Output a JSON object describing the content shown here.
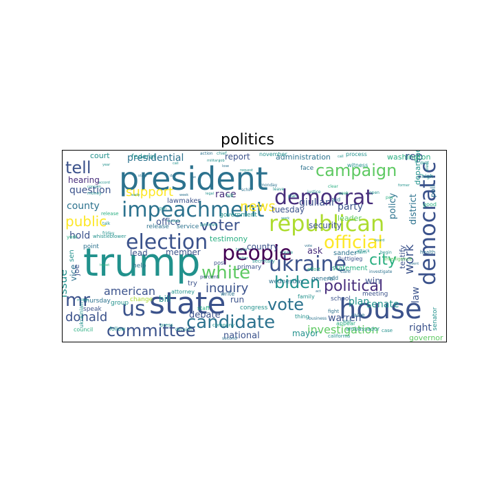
{
  "title": "politics",
  "palette": [
    "#440154",
    "#472d7b",
    "#3b528b",
    "#2c728e",
    "#21918c",
    "#28ae80",
    "#5ec962",
    "#addc30",
    "#fde725"
  ],
  "words": [
    {
      "text": "president",
      "c": 3
    },
    {
      "text": "trump",
      "c": 4
    },
    {
      "text": "state",
      "c": 2
    },
    {
      "text": "house",
      "c": 2
    },
    {
      "text": "impeachment",
      "c": 3
    },
    {
      "text": "republican",
      "c": 7
    },
    {
      "text": "democratic",
      "c": 2
    },
    {
      "text": "campaign",
      "c": 6
    },
    {
      "text": "democrat",
      "c": 1
    },
    {
      "text": "ukraine",
      "c": 2
    },
    {
      "text": "election",
      "c": 2
    },
    {
      "text": "people",
      "c": 0
    },
    {
      "text": "candidate",
      "c": 3
    },
    {
      "text": "white",
      "c": 6
    },
    {
      "text": "committee",
      "c": 2
    },
    {
      "text": "official",
      "c": 8
    },
    {
      "text": "voter",
      "c": 2
    },
    {
      "text": "vote",
      "c": 3
    },
    {
      "text": "biden",
      "c": 4
    },
    {
      "text": "us",
      "c": 2
    },
    {
      "text": "mr",
      "c": 2
    },
    {
      "text": "tell",
      "c": 2
    },
    {
      "text": "political",
      "c": 1
    },
    {
      "text": "support",
      "c": 8
    },
    {
      "text": "inquiry",
      "c": 2
    },
    {
      "text": "city",
      "c": 5
    },
    {
      "text": "public",
      "c": 8
    },
    {
      "text": "investigation",
      "c": 6
    },
    {
      "text": "news",
      "c": 8
    },
    {
      "text": "american",
      "c": 2
    },
    {
      "text": "donald",
      "c": 2
    },
    {
      "text": "work",
      "c": 2
    },
    {
      "text": "presidential",
      "c": 3
    },
    {
      "text": "administration",
      "c": 3
    },
    {
      "text": "law",
      "c": 2
    },
    {
      "text": "plan",
      "c": 4
    },
    {
      "text": "senate",
      "c": 4
    },
    {
      "text": "party",
      "c": 2
    },
    {
      "text": "vice",
      "c": 3
    },
    {
      "text": "warren",
      "c": 2
    },
    {
      "text": "giuliani",
      "c": 2
    },
    {
      "text": "issue",
      "c": 4
    },
    {
      "text": "question",
      "c": 2
    },
    {
      "text": "county",
      "c": 3
    },
    {
      "text": "hold",
      "c": 2
    },
    {
      "text": "race",
      "c": 1
    },
    {
      "text": "office",
      "c": 2
    },
    {
      "text": "district",
      "c": 3
    },
    {
      "text": "policy",
      "c": 3
    },
    {
      "text": "win",
      "c": 2
    },
    {
      "text": "ask",
      "c": 1
    },
    {
      "text": "lead",
      "c": 2
    },
    {
      "text": "member",
      "c": 2
    },
    {
      "text": "hearing",
      "c": 1
    },
    {
      "text": "rep",
      "c": 2
    },
    {
      "text": "tuesday",
      "c": 2
    },
    {
      "text": "country",
      "c": 2
    },
    {
      "text": "run",
      "c": 2
    },
    {
      "text": "debate",
      "c": 2
    },
    {
      "text": "national",
      "c": 2
    },
    {
      "text": "report",
      "c": 2
    },
    {
      "text": "right",
      "c": 2
    },
    {
      "text": "mayor",
      "c": 4
    },
    {
      "text": "security",
      "c": 2
    },
    {
      "text": "testify",
      "c": 2
    },
    {
      "text": "bill",
      "c": 4
    },
    {
      "text": "testimony",
      "c": 5
    },
    {
      "text": "leader",
      "c": 6
    },
    {
      "text": "department",
      "c": 4
    },
    {
      "text": "washington",
      "c": 5
    },
    {
      "text": "court",
      "c": 4
    },
    {
      "text": "federal",
      "c": 4
    },
    {
      "text": "sen",
      "c": 4
    },
    {
      "text": "joe",
      "c": 2
    },
    {
      "text": "senator",
      "c": 4
    },
    {
      "text": "poll",
      "c": 3
    },
    {
      "text": "governor",
      "c": 6
    },
    {
      "text": "lawmaker",
      "c": 2
    },
    {
      "text": "government",
      "c": 4
    },
    {
      "text": "release",
      "c": 3
    },
    {
      "text": "service",
      "c": 3
    },
    {
      "text": "primary",
      "c": 2
    },
    {
      "text": "sander",
      "c": 3
    },
    {
      "text": "statement",
      "c": 5
    },
    {
      "text": "congress",
      "c": 4
    },
    {
      "text": "school",
      "c": 2
    },
    {
      "text": "meeting",
      "c": 2
    },
    {
      "text": "general",
      "c": 3
    },
    {
      "text": "wednesday",
      "c": 3
    },
    {
      "text": "point",
      "c": 3
    },
    {
      "text": "thursday",
      "c": 3
    },
    {
      "text": "help",
      "c": 3
    },
    {
      "text": "try",
      "c": 2
    },
    {
      "text": "post",
      "c": 2
    },
    {
      "text": "write",
      "c": 3
    },
    {
      "text": "attorney",
      "c": 4
    },
    {
      "text": "change",
      "c": 7
    },
    {
      "text": "group",
      "c": 4
    },
    {
      "text": "face",
      "c": 3
    },
    {
      "text": "speak",
      "c": 2
    },
    {
      "text": "ukrainian",
      "c": 4
    },
    {
      "text": "council",
      "c": 5
    },
    {
      "text": "follow",
      "c": 4
    },
    {
      "text": "ambassador",
      "c": 4
    },
    {
      "text": "raise",
      "c": 3
    },
    {
      "text": "appear",
      "c": 5
    },
    {
      "text": "thing",
      "c": 4
    },
    {
      "text": "aid",
      "c": 3
    },
    {
      "text": "november",
      "c": 4
    },
    {
      "text": "process",
      "c": 4
    },
    {
      "text": "high",
      "c": 4
    },
    {
      "text": "good",
      "c": 5
    },
    {
      "text": "believe",
      "c": 4
    },
    {
      "text": "york",
      "c": 5
    },
    {
      "text": "talk",
      "c": 4
    },
    {
      "text": "percent",
      "c": 2
    },
    {
      "text": "add",
      "c": 3
    },
    {
      "text": "secretary",
      "c": 4
    },
    {
      "text": "effort",
      "c": 5
    },
    {
      "text": "Buttigieg",
      "c": 2
    },
    {
      "text": "california",
      "c": 4
    },
    {
      "text": "end",
      "c": 4
    },
    {
      "text": "fight",
      "c": 3
    },
    {
      "text": "family",
      "c": 4
    },
    {
      "text": "case",
      "c": 4
    },
    {
      "text": "elect",
      "c": 4
    },
    {
      "text": "witness",
      "c": 4
    },
    {
      "text": "clear",
      "c": 5
    },
    {
      "text": "pay",
      "c": 5
    },
    {
      "text": "hill",
      "c": 5
    },
    {
      "text": "leave",
      "c": 4
    },
    {
      "text": "release",
      "c": 5
    },
    {
      "text": "health",
      "c": 3
    },
    {
      "text": "business",
      "c": 3
    },
    {
      "text": "intelligence",
      "c": 6
    },
    {
      "text": "investigate",
      "c": 3
    },
    {
      "text": "company",
      "c": 4
    },
    {
      "text": "staff",
      "c": 5
    },
    {
      "text": "press",
      "c": 4
    },
    {
      "text": "care",
      "c": 3
    },
    {
      "text": "decision",
      "c": 4
    },
    {
      "text": "second",
      "c": 3
    },
    {
      "text": "whistleblower",
      "c": 4
    },
    {
      "text": "early",
      "c": 4
    },
    {
      "text": "justice",
      "c": 4
    },
    {
      "text": "money",
      "c": 4
    },
    {
      "text": "monday",
      "c": 3
    },
    {
      "text": "friday",
      "c": 4
    },
    {
      "text": "attack",
      "c": 4
    },
    {
      "text": "action",
      "c": 3
    },
    {
      "text": "chief",
      "c": 4
    },
    {
      "text": "deal",
      "c": 4
    },
    {
      "text": "claim",
      "c": 4
    },
    {
      "text": "begin",
      "c": 4
    },
    {
      "text": "open",
      "c": 4
    },
    {
      "text": "seek",
      "c": 5
    },
    {
      "text": "job",
      "c": 4
    },
    {
      "text": "gun",
      "c": 4
    },
    {
      "text": "create",
      "c": 4
    },
    {
      "text": "plan",
      "c": 4
    },
    {
      "text": "taylor",
      "c": 4
    },
    {
      "text": "tweet",
      "c": 5
    },
    {
      "text": "schiff",
      "c": 3
    },
    {
      "text": "military",
      "c": 4
    },
    {
      "text": "lose",
      "c": 3
    },
    {
      "text": "letter",
      "c": 4
    },
    {
      "text": "request",
      "c": 4
    },
    {
      "text": "call",
      "c": 4
    },
    {
      "text": "act",
      "c": 3
    },
    {
      "text": "accord",
      "c": 4
    },
    {
      "text": "concern",
      "c": 4
    },
    {
      "text": "week",
      "c": 3
    },
    {
      "text": "day",
      "c": 3
    },
    {
      "text": "call",
      "c": 4
    },
    {
      "text": "work",
      "c": 4
    },
    {
      "text": "tax",
      "c": 3
    },
    {
      "text": "state",
      "c": 3
    },
    {
      "text": "legal",
      "c": 4
    },
    {
      "text": "vote",
      "c": 3
    },
    {
      "text": "board",
      "c": 4
    },
    {
      "text": "former",
      "c": 4
    },
    {
      "text": "october",
      "c": 4
    },
    {
      "text": "event",
      "c": 3
    },
    {
      "text": "million",
      "c": 4
    },
    {
      "text": "year",
      "c": 4
    }
  ]
}
